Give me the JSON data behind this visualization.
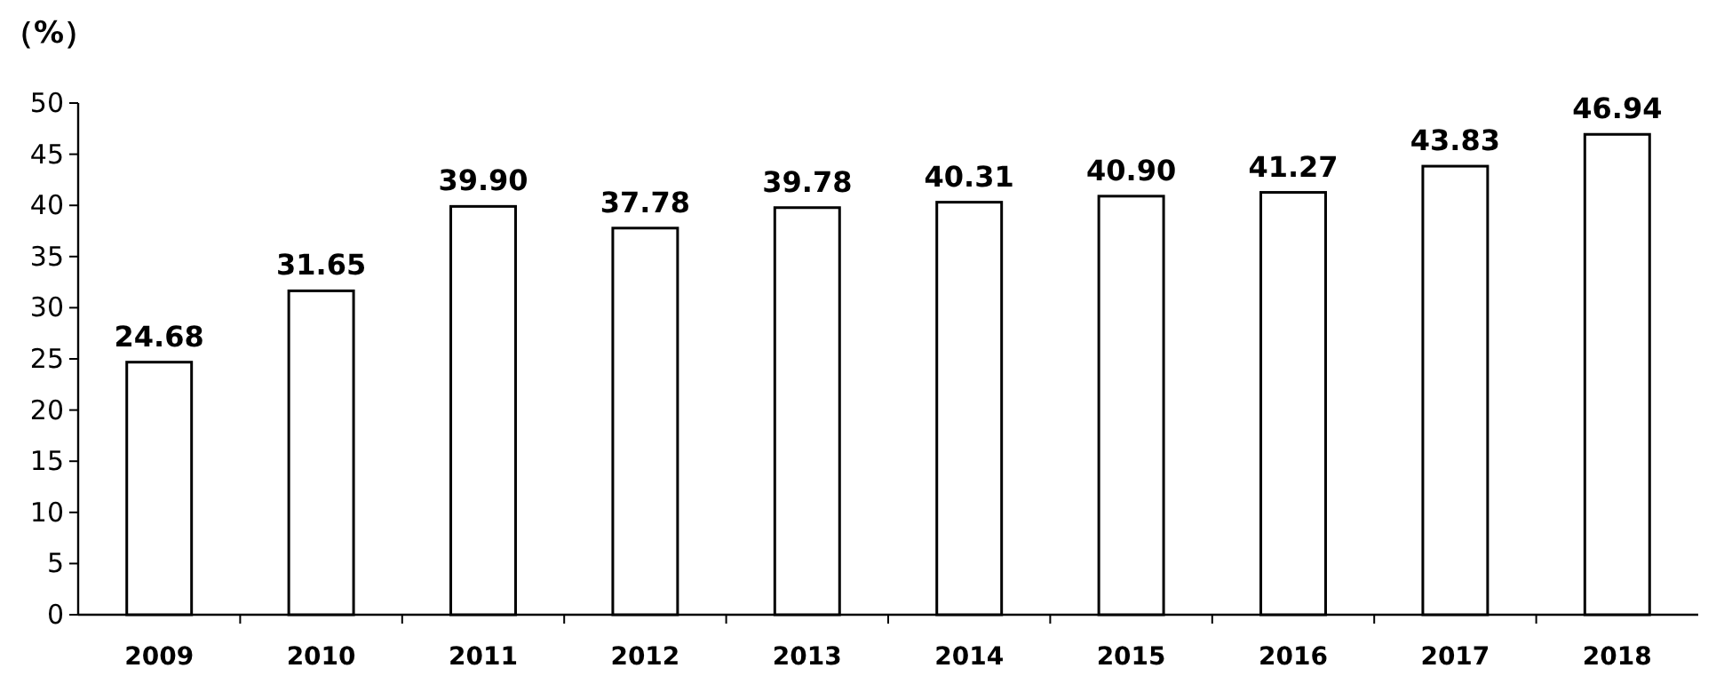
{
  "chart_data": {
    "type": "bar",
    "ylabel": "（%）",
    "categories": [
      "2009",
      "2010",
      "2011",
      "2012",
      "2013",
      "2014",
      "2015",
      "2016",
      "2017",
      "2018"
    ],
    "values": [
      24.68,
      31.65,
      39.9,
      37.78,
      39.78,
      40.31,
      40.9,
      41.27,
      43.83,
      46.94
    ],
    "value_labels": [
      "24.68",
      "31.65",
      "39.90",
      "37.78",
      "39.78",
      "40.31",
      "40.90",
      "41.27",
      "43.83",
      "46.94"
    ],
    "color": "#ffffff",
    "ylim": [
      0,
      50
    ],
    "yticks": [
      0,
      5,
      10,
      15,
      20,
      25,
      30,
      35,
      40,
      45,
      50
    ],
    "grid": false
  }
}
